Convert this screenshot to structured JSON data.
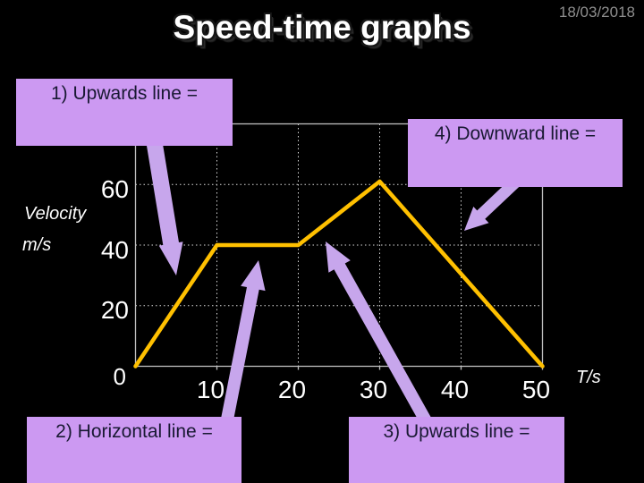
{
  "slide": {
    "title": "Speed-time graphs",
    "date": "18/03/2018"
  },
  "callouts": [
    {
      "id": 1,
      "label": "1) Upwards line ="
    },
    {
      "id": 2,
      "label": "2) Horizontal line ="
    },
    {
      "id": 3,
      "label": "3) Upwards line ="
    },
    {
      "id": 4,
      "label": "4) Downward line ="
    }
  ],
  "colors": {
    "callout_fill": "#cc99f2",
    "callout_text": "#191933",
    "arrow_fill": "#c7a6ec",
    "line_color": "#ffc000",
    "grid_color": "#d8d8d8",
    "axis_color": "#c0c0c0",
    "label_color": "#ffffff",
    "date_color": "#8f8f8f",
    "background": "#000000"
  },
  "chart_data": {
    "type": "line",
    "title": "Speed-time graphs",
    "xlabel": "T/s",
    "ylabel_lines": [
      "Velocity",
      "m/s"
    ],
    "origin_label": "0",
    "x_ticks": [
      10,
      20,
      30,
      40,
      50
    ],
    "y_ticks": [
      60,
      40,
      20
    ],
    "xlim": [
      0,
      50
    ],
    "ylim": [
      0,
      80
    ],
    "grid": true,
    "legend": false,
    "series": [
      {
        "name": "velocity",
        "points": [
          [
            0,
            0
          ],
          [
            10,
            40
          ],
          [
            20,
            40
          ],
          [
            30,
            61
          ],
          [
            50,
            0
          ]
        ]
      }
    ]
  }
}
